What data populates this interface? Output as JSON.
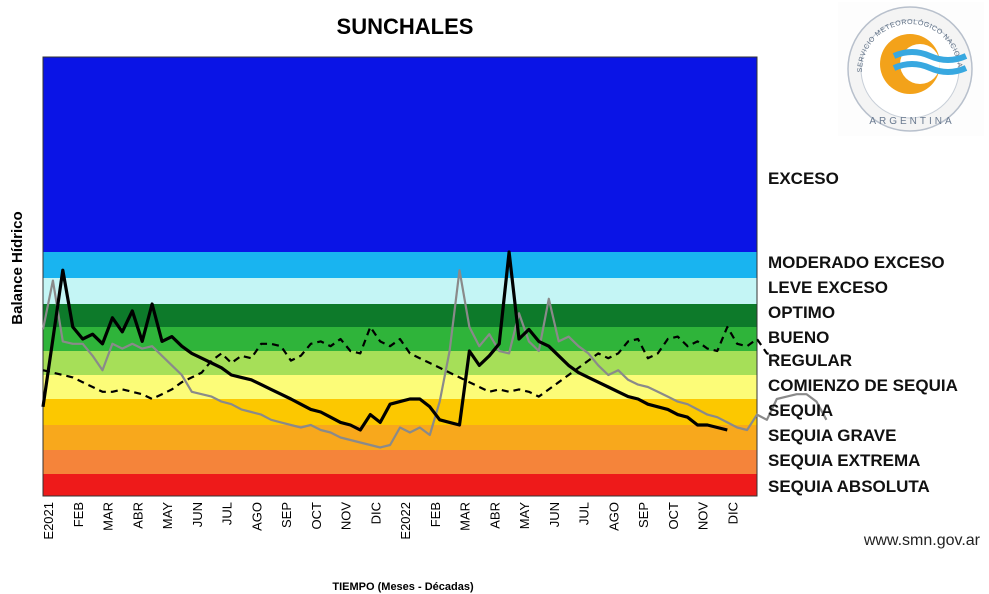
{
  "chart_data": {
    "type": "line",
    "title": "SUNCHALES",
    "ylabel": "Balance Hídrico",
    "xlabel": "TIEMPO (Meses - Décadas)",
    "x_labels": [
      "E2021",
      "FEB",
      "MAR",
      "ABR",
      "MAY",
      "JUN",
      "JUL",
      "AGO",
      "SEP",
      "OCT",
      "NOV",
      "DIC",
      "E2022",
      "FEB",
      "MAR",
      "ABR",
      "MAY",
      "JUN",
      "JUL",
      "AGO",
      "SEP",
      "OCT",
      "NOV",
      "DIC"
    ],
    "bands": [
      {
        "label": "EXCESO",
        "color": "#0a14e6"
      },
      {
        "label": "MODERADO EXCESO",
        "color": "#19b4f0"
      },
      {
        "label": "LEVE EXCESO",
        "color": "#c4f5f5"
      },
      {
        "label": "OPTIMO",
        "color": "#0d7a2a"
      },
      {
        "label": "BUENO",
        "color": "#2fb43a"
      },
      {
        "label": "REGULAR",
        "color": "#a6df58"
      },
      {
        "label": "COMIENZO DE SEQUIA",
        "color": "#fcfc78"
      },
      {
        "label": "SEQUIA",
        "color": "#fcc800"
      },
      {
        "label": "SEQUIA GRAVE",
        "color": "#f8a81c"
      },
      {
        "label": "SEQUIA EXTREMA",
        "color": "#f5843a"
      },
      {
        "label": "SEQUIA ABSOLUTA",
        "color": "#ee1a1a"
      }
    ],
    "series": [
      {
        "style": "solid-black",
        "values": [
          3.7,
          6.5,
          9.3,
          7.0,
          6.5,
          6.7,
          6.3,
          7.4,
          6.8,
          7.7,
          6.4,
          8.0,
          6.4,
          6.6,
          6.2,
          5.9,
          5.7,
          5.5,
          5.3,
          5.0,
          4.9,
          4.8,
          4.6,
          4.4,
          4.2,
          4.0,
          3.8,
          3.6,
          3.5,
          3.3,
          3.1,
          3.0,
          2.8,
          3.4,
          3.1,
          3.8,
          3.9,
          4.0,
          4.0,
          3.7,
          3.2,
          3.1,
          3.0,
          6.0,
          5.4,
          5.8,
          6.3,
          10.0,
          6.5,
          6.9,
          6.4,
          6.2,
          5.8,
          5.4,
          5.1,
          4.9,
          4.7,
          4.5,
          4.3,
          4.1,
          4.0,
          3.8,
          3.7,
          3.6,
          3.4,
          3.3,
          3.0,
          3.0,
          2.9,
          2.8
        ]
      },
      {
        "style": "gray",
        "values": [
          6.9,
          8.9,
          6.4,
          6.3,
          6.3,
          5.8,
          5.2,
          6.3,
          6.1,
          6.3,
          6.1,
          6.2,
          5.8,
          5.4,
          5.0,
          4.3,
          4.2,
          4.1,
          3.9,
          3.8,
          3.6,
          3.5,
          3.4,
          3.2,
          3.1,
          3.0,
          2.9,
          3.0,
          2.8,
          2.7,
          2.5,
          2.4,
          2.3,
          2.2,
          2.1,
          2.2,
          2.9,
          2.7,
          2.9,
          2.6,
          3.9,
          6.0,
          9.3,
          7.0,
          6.2,
          6.7,
          6.0,
          5.9,
          7.6,
          6.4,
          6.0,
          8.2,
          6.4,
          6.6,
          6.2,
          5.9,
          5.4,
          5.0,
          5.2,
          4.8,
          4.6,
          4.5,
          4.3,
          4.1,
          3.9,
          3.8,
          3.6,
          3.4,
          3.3,
          3.1,
          2.9,
          2.8,
          3.4,
          3.2,
          4.0,
          4.1,
          4.2,
          4.2,
          3.9,
          3.2
        ]
      },
      {
        "style": "dashed-black",
        "values": [
          5.2,
          5.1,
          5.0,
          4.9,
          4.7,
          4.5,
          4.3,
          4.3,
          4.4,
          4.3,
          4.2,
          4.0,
          4.2,
          4.4,
          4.7,
          4.9,
          5.1,
          5.6,
          5.9,
          5.5,
          5.8,
          5.7,
          6.3,
          6.3,
          6.2,
          5.6,
          5.8,
          6.3,
          6.4,
          6.2,
          6.5,
          6.0,
          5.9,
          7.0,
          6.4,
          6.2,
          6.5,
          5.9,
          5.7,
          5.5,
          5.3,
          5.1,
          4.9,
          4.7,
          4.5,
          4.3,
          4.4,
          4.3,
          4.4,
          4.3,
          4.1,
          4.4,
          4.7,
          5.0,
          5.3,
          5.6,
          5.9,
          5.7,
          5.9,
          6.4,
          6.5,
          5.7,
          5.9,
          6.5,
          6.6,
          6.2,
          6.4,
          6.1,
          6.0,
          7.0,
          6.3,
          6.2,
          6.5,
          5.9,
          5.8
        ]
      }
    ]
  },
  "logo": {
    "arc_text": "SERVICIO METEOROLÓGICO NACIONAL",
    "country": "ARGENTINA"
  },
  "footer": {
    "website": "www.smn.gov.ar"
  }
}
